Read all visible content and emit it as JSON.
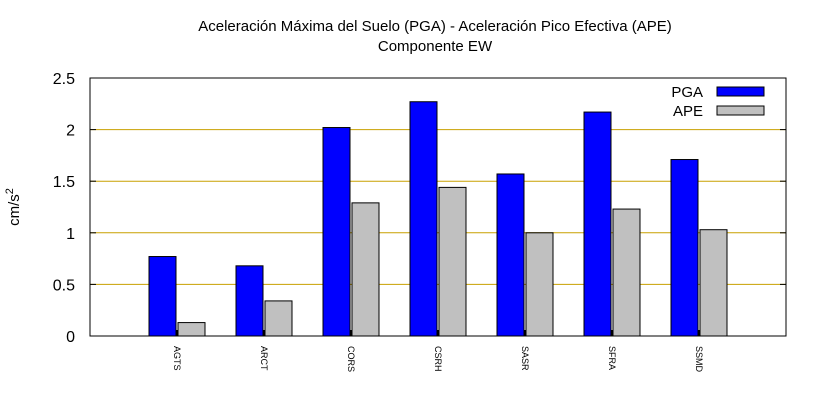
{
  "chart_data": {
    "type": "bar",
    "title": "Aceleración Máxima del Suelo (PGA) -  Aceleración Pico Efectiva (APE)",
    "subtitle": "Componente EW",
    "xlabel": "",
    "ylabel": "cm/s",
    "ylabel_superscript": "2",
    "ylim": [
      0,
      2.5
    ],
    "yticks": [
      "0",
      "0.5",
      "1",
      "1.5",
      "2",
      "2.5"
    ],
    "grid": "horizontal",
    "legend_position": "top-right",
    "categories": [
      "AGTS",
      "ARCT",
      "CORS",
      "CSRH",
      "SASR",
      "SFRA",
      "SSMD"
    ],
    "series": [
      {
        "name": "PGA",
        "color": "#0000ff",
        "values": [
          0.77,
          0.68,
          2.02,
          2.27,
          1.57,
          2.17,
          1.71
        ]
      },
      {
        "name": "APE",
        "color": "#c0c0c0",
        "values": [
          0.13,
          0.34,
          1.29,
          1.44,
          1.0,
          1.23,
          1.03
        ]
      }
    ],
    "colors": {
      "grid": "#c8a000",
      "frame": "#000000"
    }
  }
}
